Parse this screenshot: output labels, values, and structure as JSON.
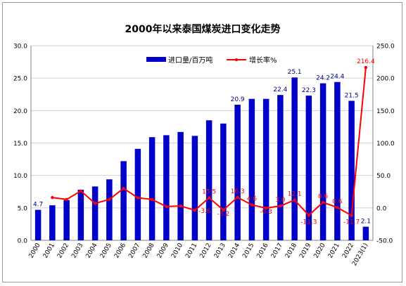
{
  "chart_data": {
    "type": "bar+line",
    "title": "2000年以来泰国煤炭进口变化走势",
    "categories": [
      "2000",
      "2001",
      "2002",
      "2003",
      "2004",
      "2005",
      "2006",
      "2007",
      "2008",
      "2009",
      "2010",
      "2011",
      "2012",
      "2013",
      "2014",
      "2015",
      "2016",
      "2017",
      "2018",
      "2019",
      "2020",
      "2021",
      "2022",
      "2023(1)"
    ],
    "series": [
      {
        "name": "进口量/百万吨",
        "type": "bar",
        "axis": "left",
        "color": "#0000c8",
        "values": [
          4.7,
          5.4,
          6.2,
          7.8,
          8.3,
          9.4,
          12.2,
          14.1,
          15.9,
          16.2,
          16.7,
          16.1,
          18.5,
          18.0,
          20.9,
          21.8,
          21.8,
          22.4,
          25.1,
          22.3,
          24.2,
          24.4,
          21.5,
          2.1
        ],
        "data_labels": {
          "0": "4.7",
          "14": "20.9",
          "17": "22.4",
          "18": "25.1",
          "19": "22.3",
          "20": "24.2",
          "21": "24.4",
          "22": "21.5",
          "23": "2.1"
        }
      },
      {
        "name": "增长率%",
        "type": "line",
        "axis": "right",
        "color": "#ff0000",
        "values": [
          null,
          16.0,
          13.0,
          26.0,
          7.0,
          13.0,
          30.0,
          15.5,
          13.0,
          2.0,
          3.0,
          -3.6,
          15.5,
          -3.2,
          16.3,
          4.6,
          -0.3,
          3.0,
          12.1,
          -11.3,
          8.6,
          0.6,
          -11.7,
          216.4
        ],
        "data_labels": {
          "12": "15.5",
          "13": "-3.2",
          "14": "16.3",
          "15": "4.6",
          "16": "-0.3",
          "17": "3.0",
          "18": "12.1",
          "19": "-11.3",
          "20": "8.6",
          "21": "0.6",
          "22": "-11.7",
          "23": "216.4"
        },
        "extra_labels": [
          {
            "index": 11,
            "text": "-3.6"
          }
        ]
      }
    ],
    "y_left": {
      "min": 0,
      "max": 30,
      "ticks": [
        "0.0",
        "5.0",
        "10.0",
        "15.0",
        "20.0",
        "25.0",
        "30.0"
      ]
    },
    "y_right": {
      "min": -50,
      "max": 250,
      "ticks": [
        "-50.0",
        "0.0",
        "50.0",
        "100.0",
        "150.0",
        "200.0",
        "250.0"
      ]
    },
    "grid": true,
    "legend": "top-right"
  }
}
